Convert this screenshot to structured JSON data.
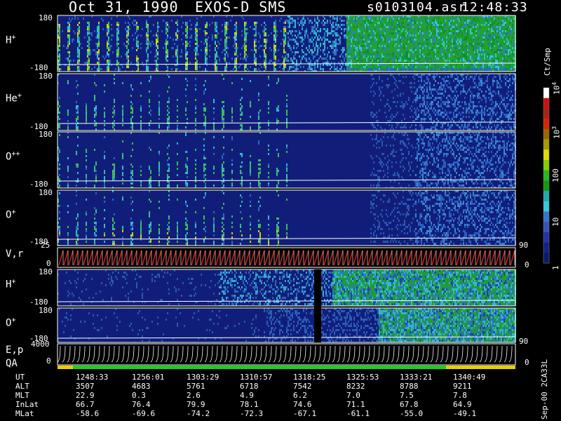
{
  "header": {
    "date": "Oct 31, 1990",
    "instrument": "EXOS-D SMS",
    "file": "s0103104.asr",
    "time": "12:48:33"
  },
  "panels": [
    {
      "label": "H",
      "sup": "+",
      "top": "180",
      "bottom": "-180",
      "style": "H"
    },
    {
      "label": "He",
      "sup": "+",
      "top": "180",
      "bottom": "-180",
      "style": "He"
    },
    {
      "label": "O",
      "sup": "++",
      "top": "180",
      "bottom": "-180",
      "style": "O2"
    },
    {
      "label": "O",
      "sup": "+",
      "top": "180",
      "bottom": "-180",
      "style": "O"
    }
  ],
  "vr": {
    "label": "V,r",
    "top": "25",
    "bottom": "0",
    "right_top": "90",
    "right_bottom": "0"
  },
  "lower_panels": [
    {
      "label": "H",
      "sup": "+",
      "top": "180",
      "bottom": "-180",
      "style": "Hlow"
    },
    {
      "label": "O",
      "sup": "+",
      "top": "180",
      "bottom": "-180",
      "style": "Olow"
    }
  ],
  "ep": {
    "label1": "E,p",
    "label2": "QA",
    "top": "4000",
    "bottom": "0",
    "right_top": "90",
    "right_bottom": "0"
  },
  "colorbar": {
    "title": "Ct/Smp",
    "labels": [
      {
        "text": "10",
        "sup": "4",
        "value": 10000
      },
      {
        "text": "10",
        "sup": "3",
        "value": 1000
      },
      {
        "text": "100",
        "sup": "",
        "value": 100
      },
      {
        "text": "10",
        "sup": "",
        "value": 10
      },
      {
        "text": "1",
        "sup": "",
        "value": 1
      }
    ],
    "colors": [
      "#ffffff",
      "#cc1111",
      "#aa2211",
      "#dd2200",
      "#996600",
      "#aa9900",
      "#dddd00",
      "#88cc00",
      "#22bb22",
      "#119911",
      "#22aaaa",
      "#33ccdd",
      "#3377cc",
      "#3355bb",
      "#2233aa",
      "#112288",
      "#0a1a6a"
    ]
  },
  "footer": {
    "rows": [
      {
        "name": "UT",
        "values": [
          "1248:33",
          "1256:01",
          "1303:29",
          "1310:57",
          "1318:25",
          "1325:53",
          "1333:21",
          "1340:49"
        ]
      },
      {
        "name": "ALT",
        "values": [
          "3507",
          "4683",
          "5761",
          "6718",
          "7542",
          "8232",
          "8788",
          "9211"
        ]
      },
      {
        "name": "MLT",
        "values": [
          "22.9",
          "0.3",
          "2.6",
          "4.9",
          "6.2",
          "7.0",
          "7.5",
          "7.8"
        ]
      },
      {
        "name": "InLat",
        "values": [
          "66.7",
          "76.4",
          "79.9",
          "78.1",
          "74.6",
          "71.1",
          "67.8",
          "64.9"
        ]
      },
      {
        "name": "MLat",
        "values": [
          "-58.6",
          "-69.6",
          "-74.2",
          "-72.3",
          "-67.1",
          "-61.1",
          "-55.0",
          "-49.1"
        ]
      }
    ],
    "stamp": "Sep-00  2CA33L"
  },
  "chart_data": {
    "type": "heatmap",
    "title": "Oct 31, 1990   EXOS-D SMS",
    "x_ticks_ut": [
      "1248:33",
      "1256:01",
      "1303:29",
      "1310:57",
      "1318:25",
      "1325:53",
      "1333:21",
      "1340:49"
    ],
    "y_range_pitch_angle": [
      -180,
      180
    ],
    "color_scale": "log",
    "color_range": [
      1,
      10000
    ],
    "color_unit": "Ct/Smp"
  }
}
